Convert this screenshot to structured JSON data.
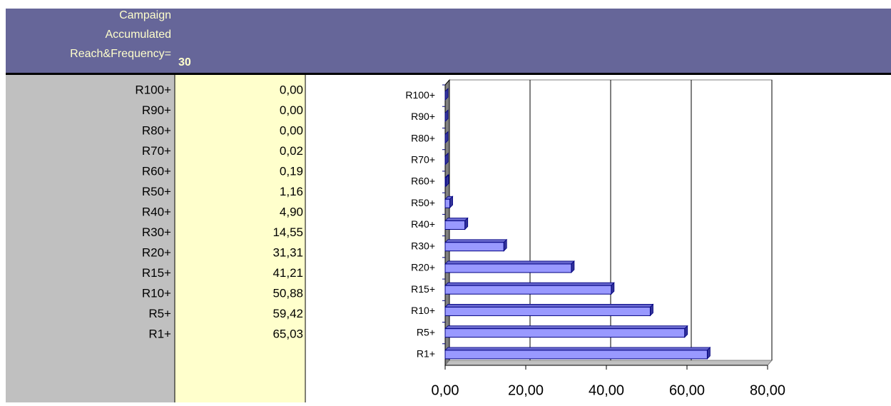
{
  "header": {
    "lines": [
      "Campaign",
      "Accumulated",
      "Reach&Frequency="
    ],
    "value": "30"
  },
  "table": {
    "rows": [
      [
        "R100+",
        "0,00"
      ],
      [
        "R90+",
        "0,00"
      ],
      [
        "R80+",
        "0,00"
      ],
      [
        "R70+",
        "0,02"
      ],
      [
        "R60+",
        "0,19"
      ],
      [
        "R50+",
        "1,16"
      ],
      [
        "R40+",
        "4,90"
      ],
      [
        "R30+",
        "14,55"
      ],
      [
        "R20+",
        "31,31"
      ],
      [
        "R15+",
        "41,21"
      ],
      [
        "R10+",
        "50,88"
      ],
      [
        "R5+",
        "59,42"
      ],
      [
        "R1+",
        "65,03"
      ]
    ]
  },
  "chart_data": {
    "type": "bar",
    "orientation": "horizontal",
    "categories": [
      "R100+",
      "R90+",
      "R80+",
      "R70+",
      "R60+",
      "R50+",
      "R40+",
      "R30+",
      "R20+",
      "R15+",
      "R10+",
      "R5+",
      "R1+"
    ],
    "values": [
      0.0,
      0.0,
      0.0,
      0.02,
      0.19,
      1.16,
      4.9,
      14.55,
      31.31,
      41.21,
      50.88,
      59.42,
      65.03
    ],
    "color": "#9999ff",
    "xlim": [
      0,
      80
    ],
    "xticks": [
      {
        "value": 0,
        "label": "0,00"
      },
      {
        "value": 20,
        "label": "20,00"
      },
      {
        "value": 40,
        "label": "40,00"
      },
      {
        "value": 60,
        "label": "60,00"
      },
      {
        "value": 80,
        "label": "80,00"
      }
    ],
    "grid": true
  }
}
